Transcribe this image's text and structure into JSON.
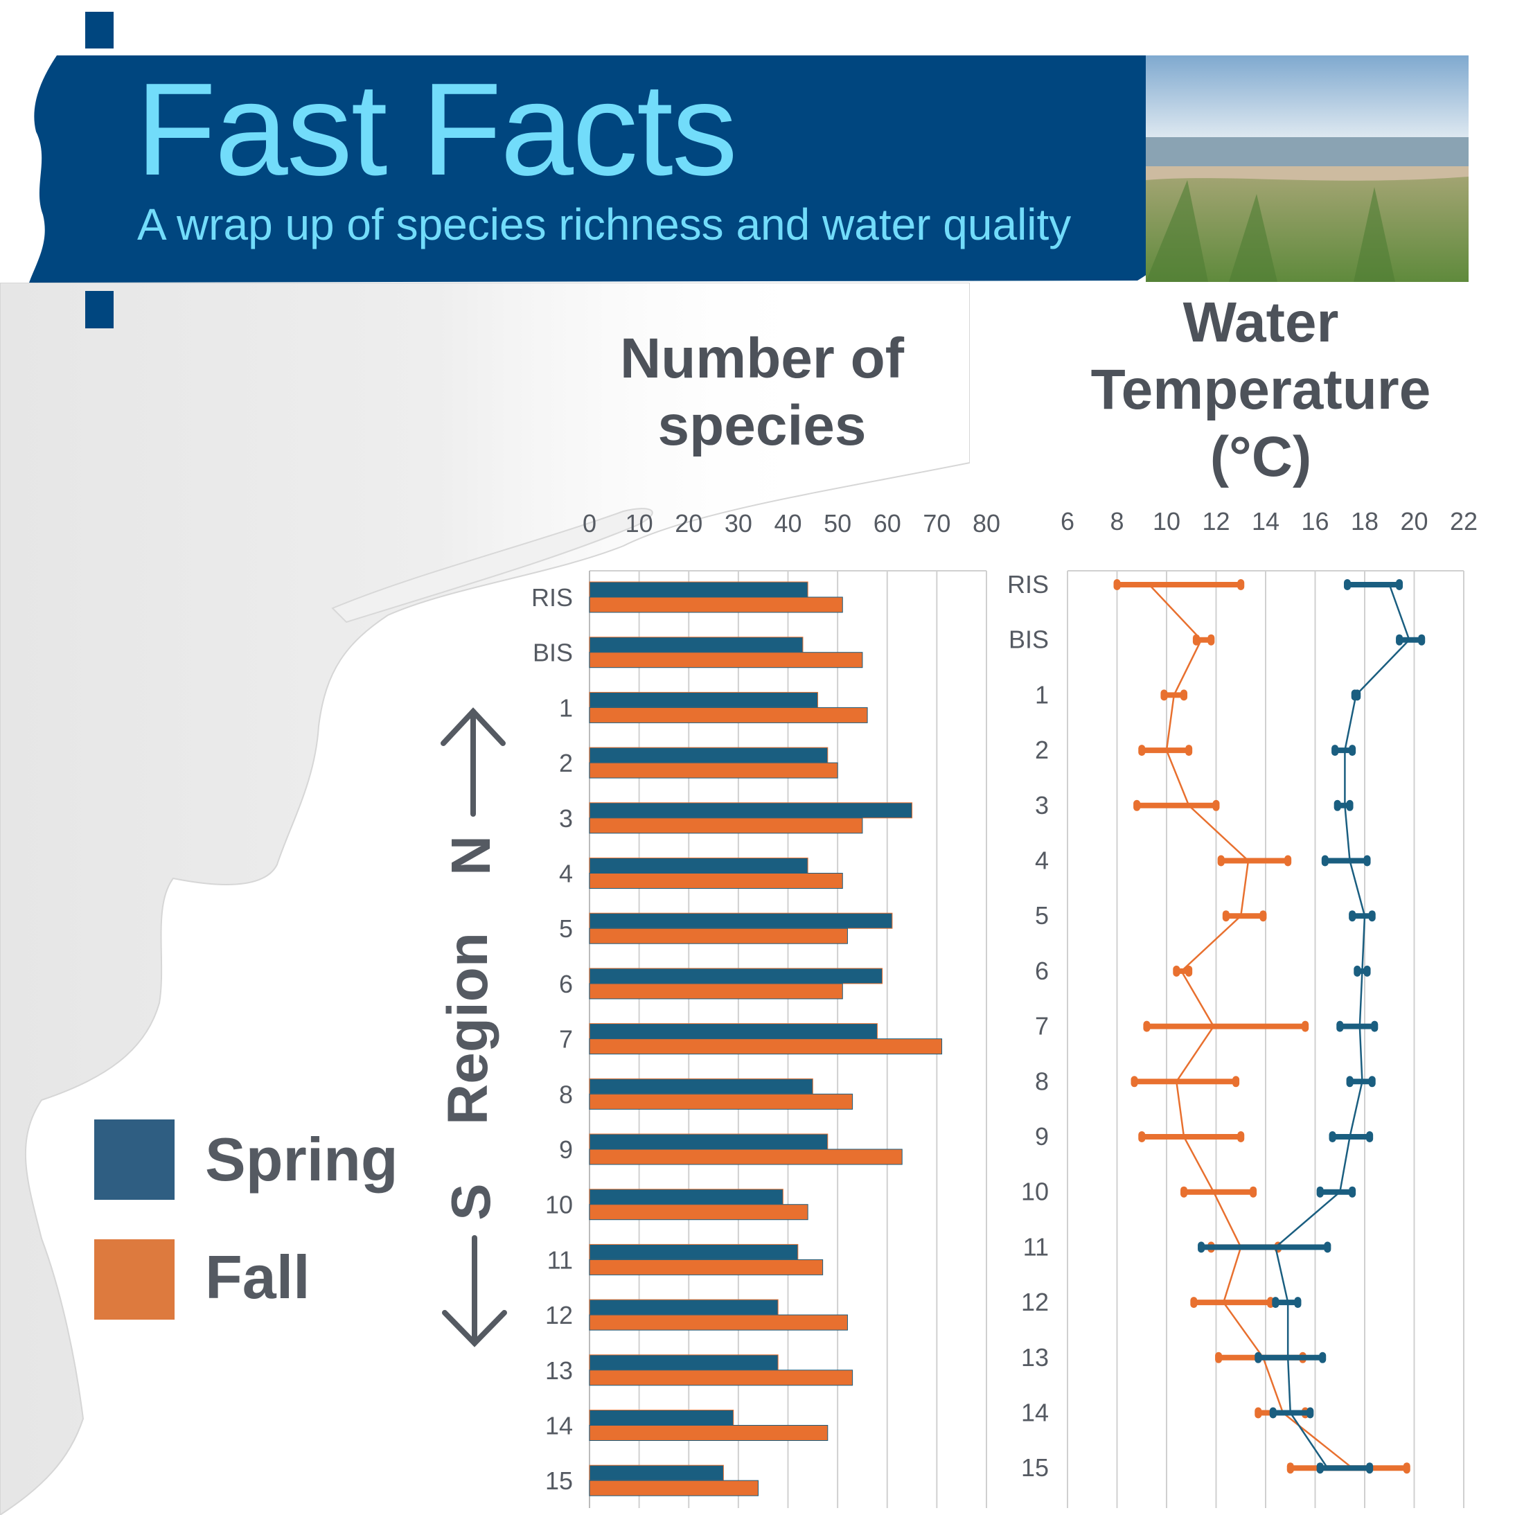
{
  "header": {
    "title": "Fast Facts",
    "subtitle": "A wrap up of species richness and water quality",
    "banner_color": "#00467f",
    "title_color": "#72dcfa",
    "photo": "beach-dune-photo"
  },
  "legend": {
    "items": [
      {
        "label": "Spring",
        "color": "#1a5e80"
      },
      {
        "label": "Fall",
        "color": "#e8702f"
      }
    ]
  },
  "region_axis": {
    "label": "Region",
    "north": "N",
    "south": "S"
  },
  "chart_data": [
    {
      "type": "bar",
      "orientation": "horizontal",
      "title": "Number of species",
      "categories": [
        "RIS",
        "BIS",
        "1",
        "2",
        "3",
        "4",
        "5",
        "6",
        "7",
        "8",
        "9",
        "10",
        "11",
        "12",
        "13",
        "14",
        "15"
      ],
      "xlim": [
        0,
        80
      ],
      "xticks": [
        0,
        10,
        20,
        30,
        40,
        50,
        60,
        70,
        80
      ],
      "grid": true,
      "series": [
        {
          "name": "Spring",
          "color": "#1a5e80",
          "values": [
            44,
            43,
            46,
            48,
            65,
            44,
            61,
            59,
            58,
            45,
            48,
            39,
            42,
            38,
            38,
            29,
            27
          ]
        },
        {
          "name": "Fall",
          "color": "#e8702f",
          "values": [
            51,
            55,
            56,
            50,
            55,
            51,
            52,
            51,
            71,
            53,
            63,
            44,
            47,
            52,
            53,
            48,
            34
          ]
        }
      ]
    },
    {
      "type": "line",
      "orientation": "vertical-categories",
      "title": "Water Temperature (°C)",
      "categories": [
        "RIS",
        "BIS",
        "1",
        "2",
        "3",
        "4",
        "5",
        "6",
        "7",
        "8",
        "9",
        "10",
        "11",
        "12",
        "13",
        "14",
        "15"
      ],
      "xlim": [
        6,
        22
      ],
      "xticks": [
        6,
        8,
        10,
        12,
        14,
        16,
        18,
        20,
        22
      ],
      "grid": true,
      "error_bars": true,
      "series": [
        {
          "name": "Spring",
          "color": "#1a5e80",
          "values": [
            19.0,
            19.8,
            17.65,
            17.2,
            17.2,
            17.4,
            18.0,
            17.9,
            17.8,
            17.9,
            17.4,
            17.0,
            14.4,
            14.9,
            14.9,
            15.0,
            16.5
          ],
          "low": [
            17.3,
            19.4,
            17.6,
            16.8,
            16.9,
            16.4,
            17.5,
            17.7,
            17.0,
            17.4,
            16.7,
            16.2,
            11.4,
            14.4,
            13.7,
            14.3,
            16.2
          ],
          "high": [
            19.4,
            20.3,
            17.7,
            17.5,
            17.4,
            18.1,
            18.3,
            18.1,
            18.4,
            18.3,
            18.2,
            17.5,
            16.5,
            15.3,
            16.3,
            15.8,
            18.2
          ]
        },
        {
          "name": "Fall",
          "color": "#e8702f",
          "values": [
            9.3,
            11.4,
            10.3,
            10.0,
            10.9,
            13.3,
            13.0,
            10.6,
            11.9,
            10.4,
            10.7,
            11.9,
            13.0,
            12.3,
            13.9,
            14.7,
            17.5
          ],
          "low": [
            8.0,
            11.2,
            9.9,
            9.0,
            8.8,
            12.2,
            12.4,
            10.4,
            9.2,
            8.7,
            9.0,
            10.7,
            11.8,
            11.1,
            12.1,
            13.7,
            15.0
          ],
          "high": [
            13.0,
            11.8,
            10.7,
            10.9,
            12.0,
            14.9,
            13.9,
            10.9,
            15.6,
            12.8,
            13.0,
            13.5,
            14.5,
            14.2,
            15.5,
            15.6,
            19.7
          ]
        }
      ]
    }
  ]
}
